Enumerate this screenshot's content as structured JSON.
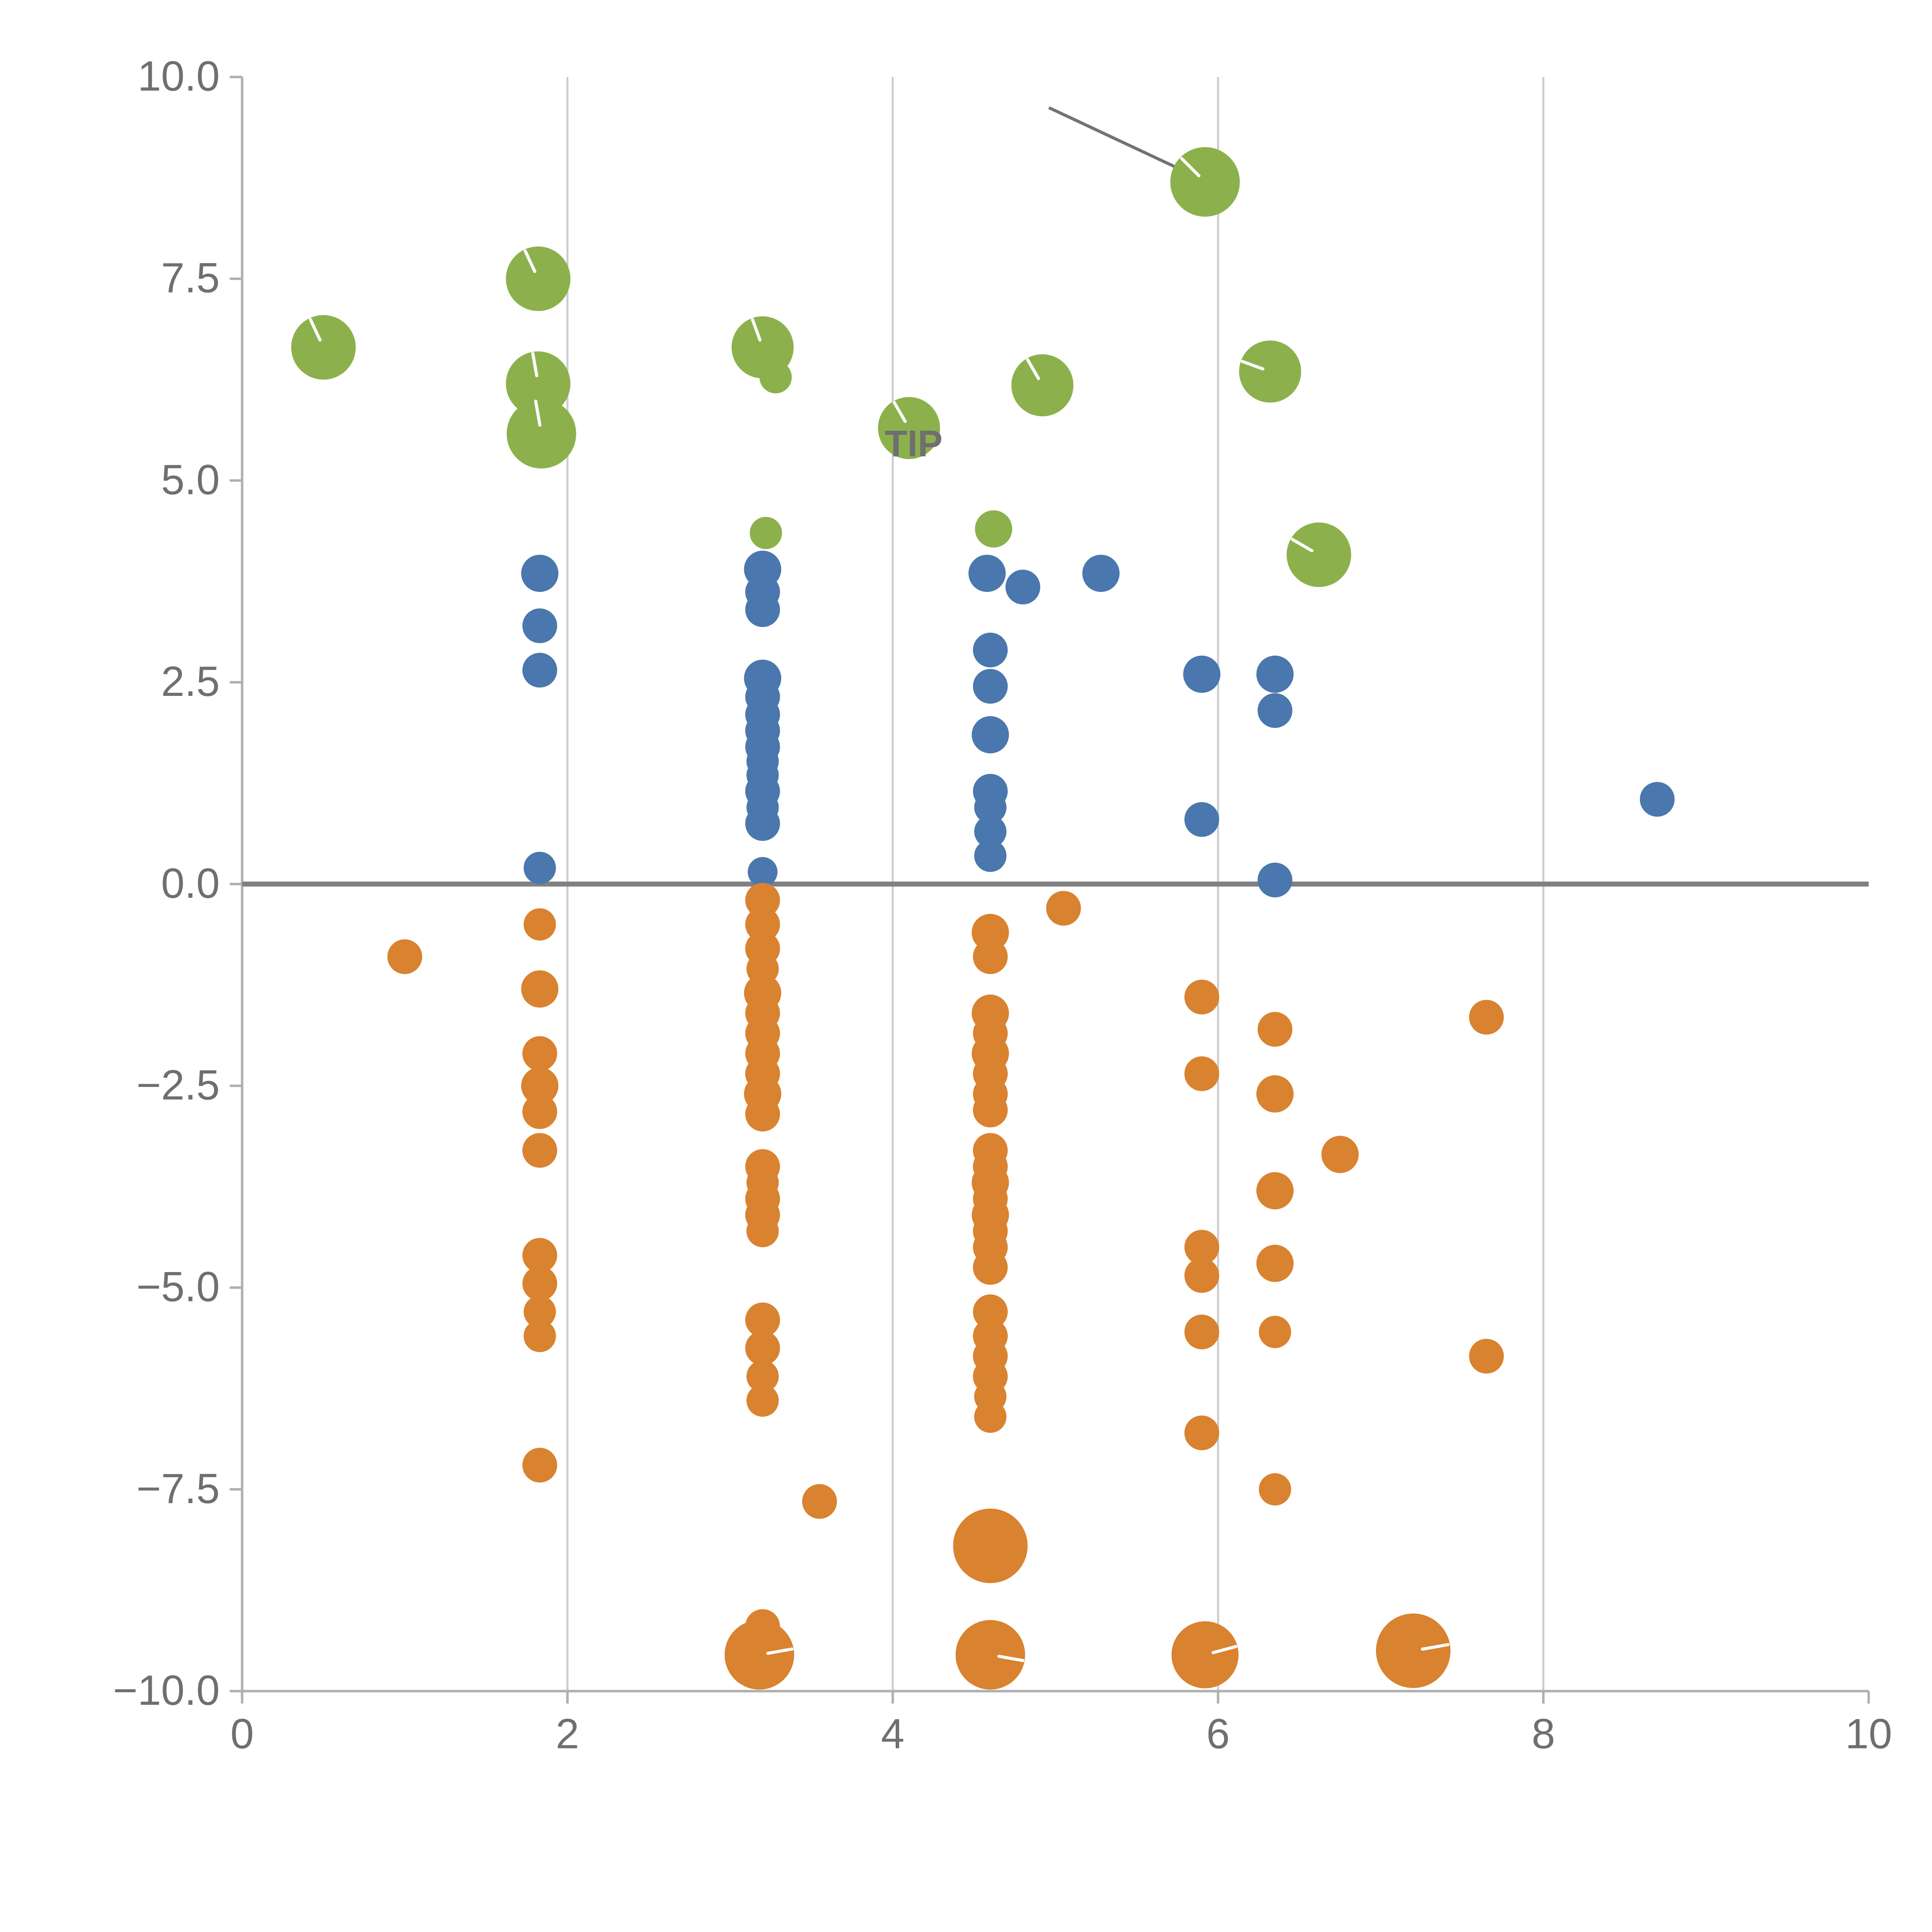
{
  "page": {
    "title": "Scatter plot",
    "background": "#ffffff"
  },
  "chart_data": {
    "type": "scatter",
    "title": "",
    "xlabel": "",
    "ylabel": "",
    "xlim": [
      0,
      10
    ],
    "ylim": [
      -10,
      10
    ],
    "x_ticks": [
      0,
      2,
      4,
      6,
      8,
      10
    ],
    "x_tick_labels": [
      "0",
      "2",
      "4",
      "6",
      "8",
      "10"
    ],
    "y_ticks": [
      10,
      7.5,
      5,
      2.5,
      0,
      -2.5,
      -5,
      -7.5,
      -10
    ],
    "y_tick_labels": [
      "10.0",
      "7.5",
      "5.0",
      "2.5",
      "0.0",
      "−2.5",
      "−5.0",
      "−7.5",
      "−10.0"
    ],
    "grid": "vertical-only",
    "grid_x_values": [
      2,
      4,
      6,
      8
    ],
    "legend": "none",
    "zero_line": {
      "y": 0,
      "color": "#808080",
      "width": 4
    },
    "annotation_line": {
      "x1": 4.96,
      "y1": 9.62,
      "x2": 5.87,
      "y2": 8.76,
      "color": "#737373",
      "width": 2.5
    },
    "overlay_text": {
      "text": "TIP",
      "x": 3.95,
      "y": 5.3,
      "color": "#ffffff",
      "size": 30
    },
    "style": {
      "grid_color": "#cccccc",
      "domain_color": "#b0b0b0",
      "tick_color": "#b0b0b0",
      "label_color": "#6f6f6f",
      "slash_color": "#ffffff"
    },
    "series": [
      {
        "name": "green",
        "color": "#8CB14C",
        "points": [
          [
            0.5,
            6.65,
            26,
            115
          ],
          [
            1.82,
            7.5,
            26,
            115
          ],
          [
            1.82,
            6.2,
            26,
            100
          ],
          [
            1.84,
            5.58,
            28,
            100
          ],
          [
            3.2,
            6.65,
            25,
            110
          ],
          [
            3.28,
            6.28,
            13,
            null
          ],
          [
            3.22,
            4.35,
            13,
            null
          ],
          [
            4.1,
            5.65,
            25,
            120
          ],
          [
            4.62,
            4.4,
            15,
            null
          ],
          [
            4.92,
            6.18,
            25,
            120
          ],
          [
            5.92,
            8.7,
            28,
            135
          ],
          [
            6.32,
            6.35,
            25,
            160
          ],
          [
            6.62,
            4.08,
            26,
            150
          ]
        ]
      },
      {
        "name": "blue",
        "color": "#4A77AD",
        "points": [
          [
            1.83,
            3.85,
            15,
            null
          ],
          [
            1.83,
            3.2,
            14,
            null
          ],
          [
            1.83,
            2.65,
            14,
            null
          ],
          [
            1.83,
            0.2,
            13,
            null
          ],
          [
            3.2,
            3.9,
            15,
            null
          ],
          [
            3.2,
            3.62,
            14,
            null
          ],
          [
            3.2,
            3.4,
            14,
            null
          ],
          [
            3.2,
            2.55,
            15,
            null
          ],
          [
            3.2,
            2.32,
            14,
            null
          ],
          [
            3.2,
            2.1,
            14,
            null
          ],
          [
            3.2,
            1.9,
            14,
            null
          ],
          [
            3.2,
            1.7,
            14,
            null
          ],
          [
            3.2,
            1.52,
            13,
            null
          ],
          [
            3.2,
            1.35,
            13,
            null
          ],
          [
            3.2,
            1.15,
            14,
            null
          ],
          [
            3.2,
            0.95,
            13,
            null
          ],
          [
            3.2,
            0.75,
            14,
            null
          ],
          [
            3.2,
            0.15,
            12,
            null
          ],
          [
            4.58,
            3.85,
            15,
            null
          ],
          [
            4.8,
            3.68,
            14,
            null
          ],
          [
            5.28,
            3.85,
            15,
            null
          ],
          [
            4.6,
            2.9,
            14,
            null
          ],
          [
            4.6,
            2.45,
            14,
            null
          ],
          [
            4.6,
            1.85,
            15,
            null
          ],
          [
            4.6,
            1.15,
            14,
            null
          ],
          [
            4.6,
            0.95,
            13,
            null
          ],
          [
            4.6,
            0.65,
            13,
            null
          ],
          [
            4.6,
            0.35,
            13,
            null
          ],
          [
            5.9,
            2.6,
            15,
            null
          ],
          [
            6.35,
            2.6,
            15,
            null
          ],
          [
            6.35,
            2.15,
            14,
            null
          ],
          [
            5.9,
            0.8,
            14,
            null
          ],
          [
            6.35,
            0.05,
            14,
            null
          ],
          [
            8.7,
            1.05,
            14,
            null
          ]
        ]
      },
      {
        "name": "orange",
        "color": "#D9822F",
        "points": [
          [
            1.0,
            -0.9,
            14,
            null
          ],
          [
            1.83,
            -0.5,
            13,
            null
          ],
          [
            1.83,
            -1.3,
            15,
            null
          ],
          [
            1.83,
            -2.1,
            14,
            null
          ],
          [
            1.83,
            -2.5,
            15,
            null
          ],
          [
            1.83,
            -2.82,
            14,
            null
          ],
          [
            1.83,
            -3.3,
            14,
            null
          ],
          [
            1.83,
            -4.6,
            14,
            null
          ],
          [
            1.83,
            -4.95,
            14,
            null
          ],
          [
            1.83,
            -5.3,
            13,
            null
          ],
          [
            1.83,
            -5.6,
            13,
            null
          ],
          [
            1.83,
            -7.2,
            14,
            null
          ],
          [
            3.2,
            -0.2,
            14,
            null
          ],
          [
            3.2,
            -0.5,
            14,
            null
          ],
          [
            3.2,
            -0.8,
            14,
            null
          ],
          [
            3.2,
            -1.05,
            13,
            null
          ],
          [
            3.2,
            -1.35,
            15,
            null
          ],
          [
            3.2,
            -1.6,
            14,
            null
          ],
          [
            3.2,
            -1.85,
            14,
            null
          ],
          [
            3.2,
            -2.1,
            14,
            null
          ],
          [
            3.2,
            -2.35,
            14,
            null
          ],
          [
            3.2,
            -2.6,
            15,
            null
          ],
          [
            3.2,
            -2.85,
            14,
            null
          ],
          [
            3.2,
            -3.5,
            14,
            null
          ],
          [
            3.2,
            -3.7,
            13,
            null
          ],
          [
            3.2,
            -3.9,
            14,
            null
          ],
          [
            3.2,
            -4.1,
            14,
            null
          ],
          [
            3.2,
            -4.3,
            13,
            null
          ],
          [
            3.2,
            -5.4,
            14,
            null
          ],
          [
            3.2,
            -5.75,
            14,
            null
          ],
          [
            3.2,
            -6.1,
            13,
            null
          ],
          [
            3.2,
            -6.4,
            13,
            null
          ],
          [
            3.2,
            -9.2,
            14,
            null
          ],
          [
            3.18,
            -9.55,
            28,
            10
          ],
          [
            3.55,
            -7.65,
            14,
            null
          ],
          [
            4.6,
            -0.6,
            15,
            null
          ],
          [
            4.6,
            -0.9,
            14,
            null
          ],
          [
            4.6,
            -1.6,
            15,
            null
          ],
          [
            4.6,
            -1.85,
            14,
            null
          ],
          [
            4.6,
            -2.1,
            15,
            null
          ],
          [
            4.6,
            -2.35,
            14,
            null
          ],
          [
            4.6,
            -2.6,
            14,
            null
          ],
          [
            4.6,
            -2.8,
            14,
            null
          ],
          [
            4.6,
            -3.3,
            14,
            null
          ],
          [
            4.6,
            -3.5,
            14,
            null
          ],
          [
            4.6,
            -3.7,
            15,
            null
          ],
          [
            4.6,
            -3.9,
            14,
            null
          ],
          [
            4.6,
            -4.1,
            15,
            null
          ],
          [
            4.6,
            -4.3,
            14,
            null
          ],
          [
            4.6,
            -4.5,
            14,
            null
          ],
          [
            4.6,
            -4.75,
            14,
            null
          ],
          [
            4.6,
            -5.3,
            14,
            null
          ],
          [
            4.6,
            -5.6,
            14,
            null
          ],
          [
            4.6,
            -5.85,
            14,
            null
          ],
          [
            4.6,
            -6.1,
            14,
            null
          ],
          [
            4.6,
            -6.35,
            13,
            null
          ],
          [
            4.6,
            -6.6,
            13,
            null
          ],
          [
            4.6,
            -8.2,
            30,
            null
          ],
          [
            4.6,
            -9.55,
            28,
            -10
          ],
          [
            5.05,
            -0.3,
            14,
            null
          ],
          [
            5.9,
            -1.4,
            14,
            null
          ],
          [
            5.9,
            -2.35,
            14,
            null
          ],
          [
            5.9,
            -4.5,
            14,
            null
          ],
          [
            5.9,
            -4.85,
            14,
            null
          ],
          [
            5.9,
            -5.55,
            14,
            null
          ],
          [
            5.9,
            -6.8,
            14,
            null
          ],
          [
            6.35,
            -1.8,
            14,
            null
          ],
          [
            6.35,
            -2.6,
            15,
            null
          ],
          [
            6.35,
            -3.8,
            15,
            null
          ],
          [
            6.35,
            -4.7,
            15,
            null
          ],
          [
            6.35,
            -5.55,
            13,
            null
          ],
          [
            6.35,
            -7.5,
            13,
            null
          ],
          [
            6.75,
            -3.35,
            15,
            null
          ],
          [
            7.65,
            -1.65,
            14,
            null
          ],
          [
            7.65,
            -5.85,
            14,
            null
          ],
          [
            5.92,
            -9.55,
            27,
            15
          ],
          [
            7.2,
            -9.5,
            30,
            10
          ]
        ]
      }
    ]
  }
}
